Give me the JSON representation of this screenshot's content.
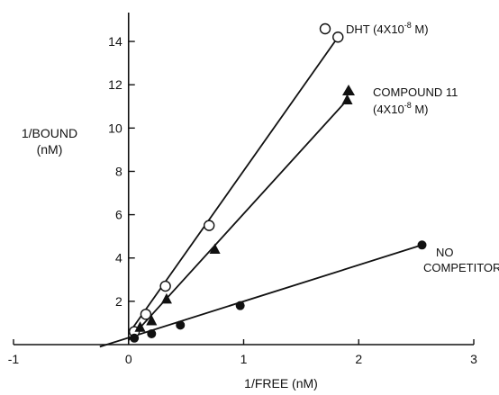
{
  "chart_data": {
    "type": "scatter",
    "title": "",
    "xlabel": "1/FREE (nM)",
    "ylabel_line1": "1/BOUND",
    "ylabel_line2": "(nM)",
    "xlim": [
      -1,
      3
    ],
    "ylim": [
      0,
      15
    ],
    "x_ticks": [
      -1,
      0,
      1,
      2,
      3
    ],
    "y_ticks": [
      2,
      4,
      6,
      8,
      10,
      12,
      14
    ],
    "grid": false,
    "legend": "direct labels at line ends",
    "series": [
      {
        "name": "DHT (4X10-8 M)",
        "label_pre": "DHT (4X10",
        "label_sup": "-8",
        "label_post": " M)",
        "marker": "open-circle",
        "x": [
          0.05,
          0.15,
          0.32,
          0.7,
          1.82
        ],
        "y": [
          0.6,
          1.4,
          2.7,
          5.5,
          14.2
        ],
        "fit": {
          "x": [
            0.0,
            1.82
          ],
          "y": [
            0.5,
            14.2
          ]
        }
      },
      {
        "name": "COMPOUND 11 (4X10-8 M)",
        "label_line1": "COMPOUND 11",
        "label_pre": "(4X10",
        "label_sup": "-8",
        "label_post": " M)",
        "marker": "filled-triangle",
        "x": [
          0.1,
          0.2,
          0.33,
          0.75,
          1.9
        ],
        "y": [
          0.8,
          1.1,
          2.1,
          4.4,
          11.3
        ],
        "fit": {
          "x": [
            0.0,
            1.9
          ],
          "y": [
            0.2,
            11.3
          ]
        }
      },
      {
        "name": "NO COMPETITOR",
        "label_line1": "NO",
        "label_line2": "COMPETITOR",
        "marker": "filled-circle",
        "x": [
          0.05,
          0.2,
          0.45,
          0.97,
          2.55
        ],
        "y": [
          0.3,
          0.5,
          0.9,
          1.8,
          4.6
        ],
        "fit": {
          "x": [
            -0.25,
            2.55
          ],
          "y": [
            -0.1,
            4.6
          ]
        }
      }
    ]
  }
}
